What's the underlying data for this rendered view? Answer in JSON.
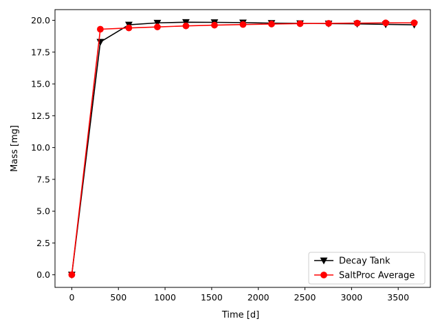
{
  "chart_data": {
    "type": "line",
    "xlabel": "Time [d]",
    "ylabel": "Mass [mg]",
    "xlim": [
      -180,
      3845
    ],
    "ylim": [
      -0.99,
      20.84
    ],
    "x_ticks": [
      0,
      500,
      1000,
      1500,
      2000,
      2500,
      3000,
      3500
    ],
    "y_ticks": [
      0.0,
      2.5,
      5.0,
      7.5,
      10.0,
      12.5,
      15.0,
      17.5,
      20.0
    ],
    "x_tick_labels": [
      "0",
      "500",
      "1000",
      "1500",
      "2000",
      "2500",
      "3000",
      "3500"
    ],
    "y_tick_labels": [
      "0.0",
      "2.5",
      "5.0",
      "7.5",
      "10.0",
      "12.5",
      "15.0",
      "17.5",
      "20.0"
    ],
    "grid": false,
    "legend_position": "lower right",
    "series": [
      {
        "name": "Decay Tank",
        "color": "#000000",
        "marker": "triangle-down",
        "x": [
          0,
          306,
          612,
          918,
          1224,
          1530,
          1836,
          2142,
          2448,
          2754,
          3060,
          3366,
          3672
        ],
        "y": [
          0.0,
          18.3,
          19.65,
          19.8,
          19.85,
          19.84,
          19.82,
          19.78,
          19.76,
          19.74,
          19.72,
          19.68,
          19.65
        ]
      },
      {
        "name": "SaltProc Average",
        "color": "#ff0000",
        "marker": "circle",
        "x": [
          0,
          306,
          612,
          918,
          1224,
          1530,
          1836,
          2142,
          2448,
          2754,
          3060,
          3366,
          3672
        ],
        "y": [
          0.0,
          19.3,
          19.4,
          19.48,
          19.56,
          19.62,
          19.67,
          19.71,
          19.74,
          19.76,
          19.78,
          19.8,
          19.8
        ]
      }
    ]
  }
}
